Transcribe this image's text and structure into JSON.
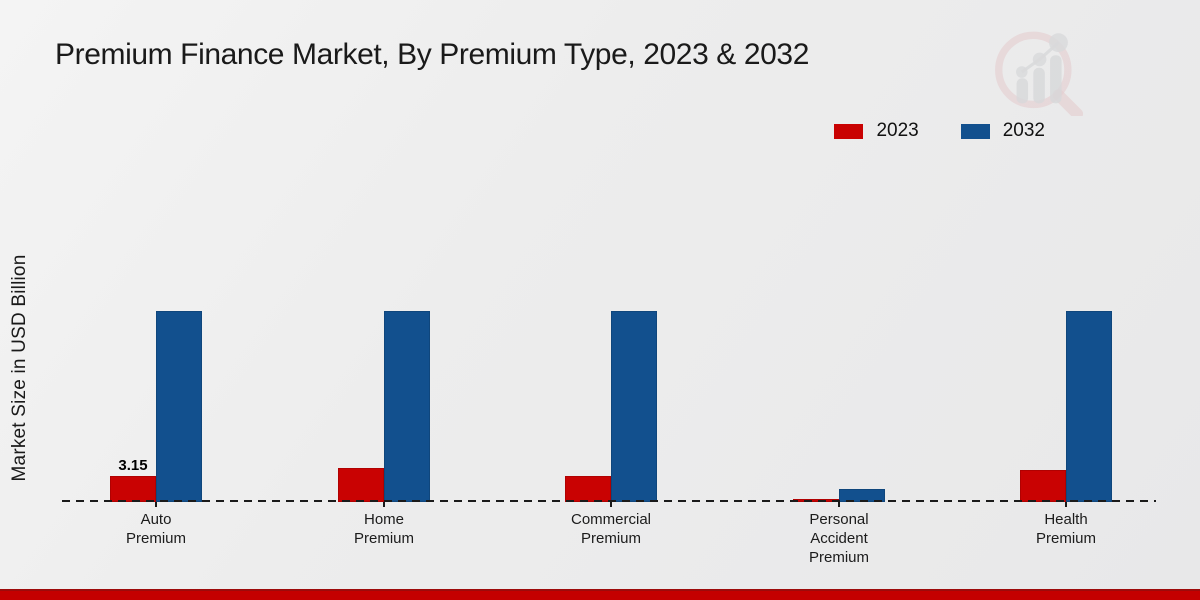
{
  "page": {
    "title": "Premium Finance Market, By Premium Type, 2023 & 2032"
  },
  "icons": {
    "watermark": "magnifier-bar-chart-logo"
  },
  "colors": {
    "series_2023": "#c90202",
    "series_2032": "#12508e",
    "footer_bar": "#c40000",
    "axis": "#1a1a1a",
    "background": "#ededed"
  },
  "chart_data": {
    "type": "bar",
    "title": "Premium Finance Market, By Premium Type, 2023 & 2032",
    "xlabel": "",
    "ylabel": "Market Size in USD Billion",
    "categories": [
      "Auto\nPremium",
      "Home\nPremium",
      "Commercial\nPremium",
      "Personal\nAccident\nPremium",
      "Health\nPremium"
    ],
    "series": [
      {
        "name": "2023",
        "color": "#c90202",
        "values": [
          3.15,
          4.1,
          3.05,
          0.4,
          3.85
        ],
        "labels": [
          "3.15",
          "",
          "",
          "",
          ""
        ]
      },
      {
        "name": "2032",
        "color": "#12508e",
        "values": [
          22.7,
          22.7,
          22.7,
          1.55,
          22.7
        ],
        "labels": [
          "",
          "",
          "",
          "",
          ""
        ]
      }
    ],
    "ylim": [
      0,
      24
    ],
    "grid": false,
    "axis_style": "dashed-baseline-only",
    "legend_position": "top-right"
  }
}
